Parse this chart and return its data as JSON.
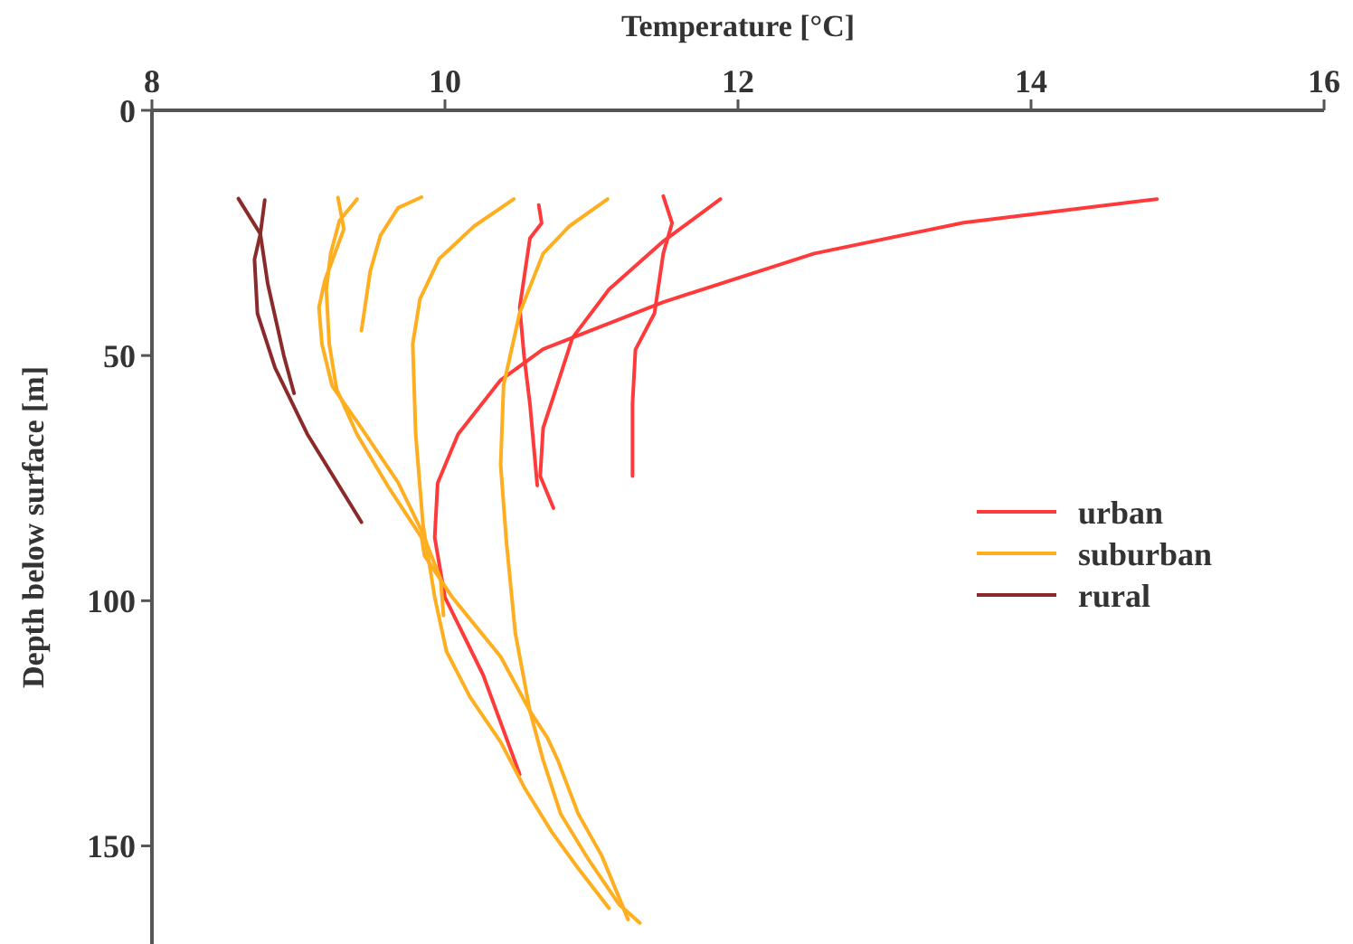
{
  "chart_data": {
    "type": "line",
    "xlabel": "Temperature [°C]",
    "ylabel": "Depth below surface [m]",
    "xlim": [
      8,
      16
    ],
    "xticks": [
      8,
      10,
      12,
      14,
      16
    ],
    "ylim": [
      170,
      0
    ],
    "yticks": [
      0,
      50,
      100,
      150
    ],
    "legend": "right",
    "series": [
      {
        "name": "urban",
        "color": "#ff3a3a",
        "x": [
          14.86,
          13.54,
          12.52,
          11.49,
          10.67,
          10.38,
          10.09,
          9.95,
          9.93,
          10.0,
          10.26,
          10.51
        ],
        "values": [
          18.1,
          22.9,
          29.2,
          39.1,
          48.7,
          55,
          66,
          76,
          87.1,
          99.3,
          115.1,
          135.4
        ]
      },
      {
        "color": "#ff3a3a",
        "x": [
          10.64,
          10.66,
          10.58,
          10.51,
          10.54,
          10.58,
          10.63
        ],
        "values": [
          19.3,
          23,
          26.1,
          40.2,
          50.1,
          59.9,
          76.5
        ]
      },
      {
        "color": "#ff3a3a",
        "x": [
          11.88,
          11.49,
          11.12,
          10.87,
          10.75,
          10.67,
          10.65,
          10.74
        ],
        "values": [
          18.1,
          26.7,
          36.5,
          46.4,
          57.5,
          64.8,
          74.6,
          81.1
        ]
      },
      {
        "color": "#ff3a3a",
        "x": [
          11.49,
          11.55,
          11.49,
          11.43,
          11.3,
          11.28,
          11.28
        ],
        "values": [
          17.5,
          23,
          29.2,
          41.4,
          48.8,
          59.9,
          74.6
        ]
      },
      {
        "name": "suburban",
        "color": "#ffae1f",
        "x": [
          9.27,
          9.31,
          9.18,
          9.14,
          9.16,
          9.23,
          9.43,
          9.68,
          9.84,
          9.97,
          9.99
        ],
        "values": [
          17.8,
          24.2,
          34.7,
          40.2,
          47.6,
          56.2,
          64.8,
          75.9,
          85.7,
          95.6,
          103
        ]
      },
      {
        "color": "#ffae1f",
        "x": [
          9.4,
          9.28,
          9.22,
          9.19,
          9.21,
          9.26,
          9.4,
          9.62,
          9.84,
          9.86,
          10.05,
          10.38,
          10.58,
          10.7,
          10.77,
          10.91,
          11.07,
          11.25
        ],
        "values": [
          18.1,
          22.5,
          29.2,
          36.5,
          47.6,
          56.8,
          66.1,
          77.1,
          87.1,
          90.8,
          99.3,
          111.4,
          122.5,
          128,
          132.5,
          143.5,
          152,
          165
        ]
      },
      {
        "color": "#ffae1f",
        "x": [
          9.84,
          9.68,
          9.56,
          9.49,
          9.43
        ],
        "values": [
          17.7,
          19.9,
          25.5,
          32.8,
          44.9
        ]
      },
      {
        "color": "#ffae1f",
        "x": [
          10.47,
          10.2,
          9.96,
          9.83,
          9.78,
          9.8,
          9.85,
          9.93,
          10.01,
          10.17,
          10.38,
          10.54,
          10.73,
          10.91,
          11.12
        ],
        "values": [
          18.1,
          23.6,
          30.3,
          38.4,
          47.6,
          66,
          84.5,
          99.3,
          110.3,
          119.6,
          128.8,
          138,
          147.2,
          154.6,
          162.7
        ]
      },
      {
        "color": "#ffae1f",
        "x": [
          11.11,
          10.85,
          10.67,
          10.51,
          10.4,
          10.38,
          10.42,
          10.48,
          10.58,
          10.67,
          10.79,
          10.98,
          11.19,
          11.33
        ],
        "values": [
          18.1,
          23.6,
          29.2,
          41.3,
          56.1,
          72.3,
          88.2,
          106.6,
          122.5,
          132.5,
          143.5,
          152.8,
          162,
          165.7
        ]
      },
      {
        "name": "rural",
        "color": "#8b2a2a",
        "x": [
          8.59,
          8.74,
          8.79,
          8.9,
          8.97
        ],
        "values": [
          18,
          25.2,
          35.3,
          50,
          57.7
        ]
      },
      {
        "color": "#8b2a2a",
        "x": [
          8.77,
          8.74,
          8.7,
          8.72,
          8.84,
          9.06,
          9.43
        ],
        "values": [
          18.3,
          25.2,
          30.4,
          41.4,
          52.5,
          66,
          84
        ]
      }
    ]
  }
}
